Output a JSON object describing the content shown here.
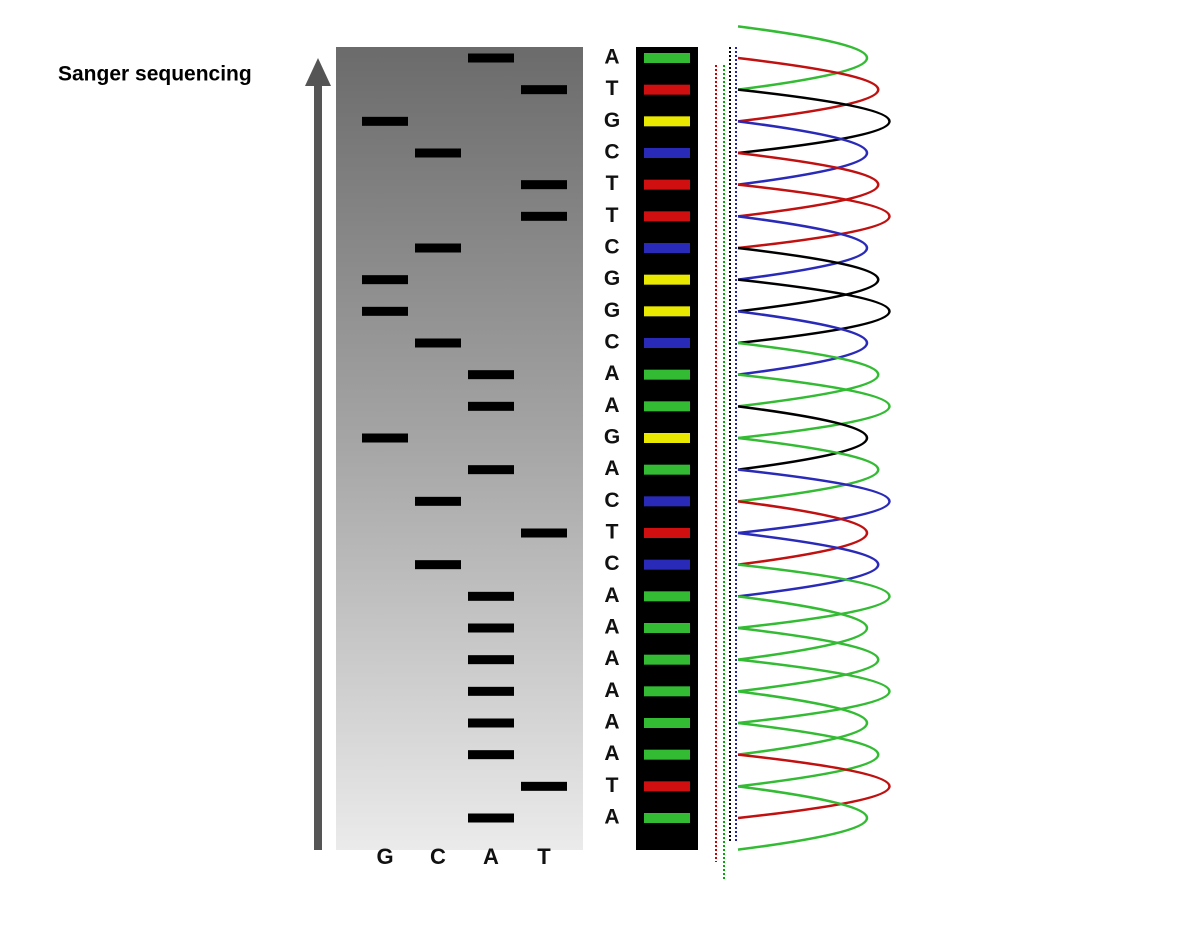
{
  "title": "Sanger sequencing",
  "lanes": [
    "G",
    "C",
    "A",
    "T"
  ],
  "sequence": [
    "A",
    "T",
    "G",
    "C",
    "T",
    "T",
    "C",
    "G",
    "G",
    "C",
    "A",
    "A",
    "G",
    "A",
    "C",
    "T",
    "C",
    "A",
    "A",
    "A",
    "A",
    "A",
    "A",
    "T",
    "A"
  ]
}
